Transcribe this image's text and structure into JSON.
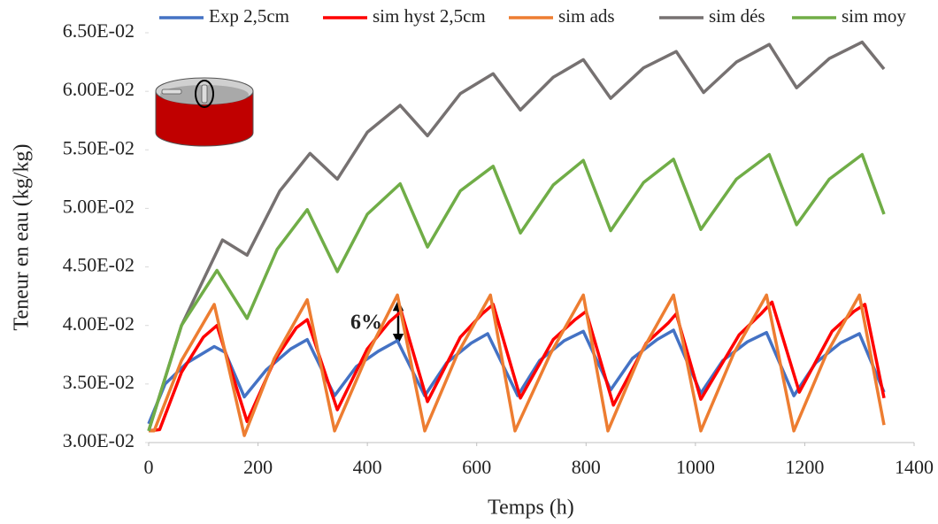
{
  "chart_data": {
    "type": "line",
    "xlabel": "Temps (h)",
    "ylabel": "Teneur en eau (kg/kg)",
    "annotation": "6%",
    "xlim": [
      0,
      1400
    ],
    "xticks": [
      0,
      200,
      400,
      600,
      800,
      1000,
      1200,
      1400
    ],
    "ylim": [
      0.03,
      0.065
    ],
    "yticks": [
      {
        "value": 0.03,
        "label": "3.00E-02"
      },
      {
        "value": 0.035,
        "label": "3.50E-02"
      },
      {
        "value": 0.04,
        "label": "4.00E-02"
      },
      {
        "value": 0.045,
        "label": "4.50E-02"
      },
      {
        "value": 0.05,
        "label": "5.00E-02"
      },
      {
        "value": 0.055,
        "label": "5.50E-02"
      },
      {
        "value": 0.06,
        "label": "6.00E-02"
      },
      {
        "value": 0.065,
        "label": "6.50E-02"
      }
    ],
    "grid": false,
    "legend": "top",
    "series": [
      {
        "name": "Exp 2,5cm",
        "color": "#4472c4",
        "x": [
          0,
          30,
          70,
          120,
          140,
          175,
          215,
          260,
          290,
          340,
          380,
          420,
          455,
          505,
          545,
          590,
          620,
          675,
          715,
          760,
          795,
          845,
          885,
          930,
          960,
          1010,
          1050,
          1095,
          1130,
          1180,
          1220,
          1265,
          1300,
          1345
        ],
        "values": [
          0.0316,
          0.035,
          0.0368,
          0.0382,
          0.0377,
          0.0339,
          0.0362,
          0.038,
          0.0388,
          0.034,
          0.0365,
          0.0378,
          0.0387,
          0.034,
          0.0368,
          0.0385,
          0.0393,
          0.034,
          0.037,
          0.0387,
          0.0395,
          0.0345,
          0.0372,
          0.0388,
          0.0396,
          0.0342,
          0.037,
          0.0386,
          0.0394,
          0.034,
          0.0368,
          0.0385,
          0.0393,
          0.0343
        ]
      },
      {
        "name": "sim hyst 2,5cm",
        "color": "#ff0000",
        "x": [
          0,
          20,
          60,
          100,
          125,
          180,
          230,
          270,
          290,
          345,
          400,
          440,
          462,
          510,
          570,
          610,
          630,
          680,
          740,
          780,
          800,
          850,
          910,
          950,
          965,
          1010,
          1080,
          1120,
          1140,
          1190,
          1250,
          1290,
          1310,
          1345
        ],
        "values": [
          0.031,
          0.0311,
          0.036,
          0.039,
          0.04,
          0.0318,
          0.037,
          0.0398,
          0.0405,
          0.0328,
          0.038,
          0.0403,
          0.0412,
          0.0335,
          0.039,
          0.041,
          0.0418,
          0.0338,
          0.0388,
          0.0405,
          0.0412,
          0.0332,
          0.0385,
          0.0402,
          0.041,
          0.0337,
          0.0392,
          0.041,
          0.042,
          0.0343,
          0.0395,
          0.0412,
          0.0418,
          0.0338
        ]
      },
      {
        "name": "sim ads",
        "color": "#ed7d31",
        "x": [
          0,
          10,
          60,
          120,
          175,
          230,
          290,
          340,
          400,
          455,
          505,
          565,
          625,
          670,
          735,
          795,
          840,
          900,
          960,
          1010,
          1070,
          1130,
          1180,
          1240,
          1300,
          1345
        ],
        "values": [
          0.031,
          0.031,
          0.037,
          0.0418,
          0.0306,
          0.0372,
          0.0422,
          0.031,
          0.0375,
          0.0426,
          0.031,
          0.0376,
          0.0426,
          0.031,
          0.0376,
          0.0426,
          0.031,
          0.0376,
          0.0426,
          0.031,
          0.0376,
          0.0426,
          0.031,
          0.0376,
          0.0426,
          0.0315
        ]
      },
      {
        "name": "sim dés",
        "color": "#767171",
        "x": [
          0,
          60,
          135,
          180,
          240,
          295,
          345,
          400,
          460,
          510,
          570,
          630,
          680,
          740,
          795,
          845,
          905,
          965,
          1015,
          1075,
          1135,
          1185,
          1245,
          1305,
          1345
        ],
        "values": [
          0.031,
          0.04,
          0.0473,
          0.046,
          0.0515,
          0.0547,
          0.0525,
          0.0565,
          0.0588,
          0.0562,
          0.0598,
          0.0615,
          0.0584,
          0.0612,
          0.0627,
          0.0594,
          0.062,
          0.0634,
          0.0599,
          0.0625,
          0.064,
          0.0603,
          0.0628,
          0.0642,
          0.0619
        ]
      },
      {
        "name": "sim moy",
        "color": "#70ad47",
        "x": [
          0,
          60,
          125,
          180,
          235,
          290,
          345,
          400,
          460,
          510,
          570,
          630,
          680,
          740,
          795,
          845,
          905,
          960,
          1010,
          1075,
          1135,
          1185,
          1245,
          1305,
          1345
        ],
        "values": [
          0.031,
          0.04,
          0.0447,
          0.0406,
          0.0465,
          0.0499,
          0.0446,
          0.0495,
          0.0521,
          0.0467,
          0.0515,
          0.0536,
          0.0479,
          0.052,
          0.0541,
          0.0481,
          0.0522,
          0.0542,
          0.0482,
          0.0525,
          0.0546,
          0.0486,
          0.0525,
          0.0546,
          0.0495
        ]
      }
    ]
  }
}
